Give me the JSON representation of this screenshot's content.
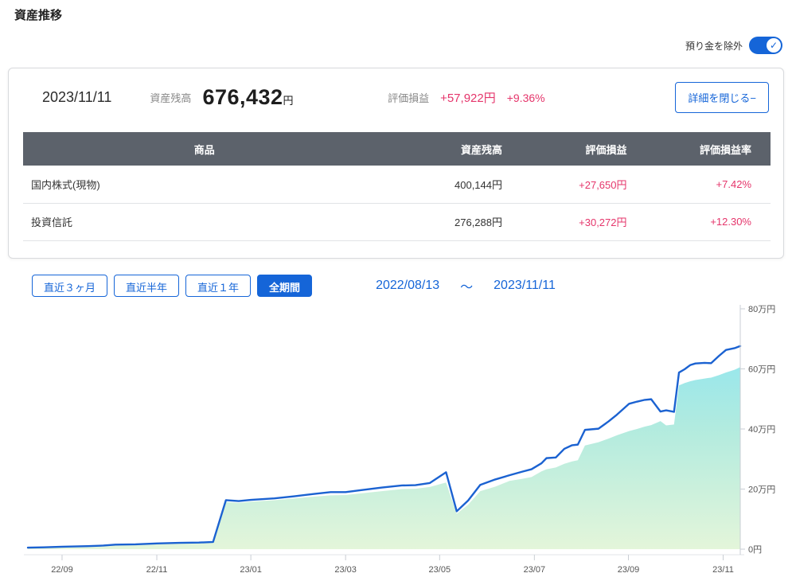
{
  "page": {
    "title": "資産推移"
  },
  "toggle": {
    "label": "預り金を除外",
    "on": true,
    "check_glyph": "✓",
    "accent": "#1565d8"
  },
  "summary": {
    "date": "2023/11/11",
    "balance_label": "資産残高",
    "balance_value": "676,432",
    "balance_unit": "円",
    "pl_label": "評価損益",
    "pl_value": "+57,922円",
    "pl_pct": "+9.36%",
    "detail_button_label": "詳細を閉じる−",
    "gain_color": "#e5356b"
  },
  "table": {
    "headers": [
      "商品",
      "資産残高",
      "評価損益",
      "評価損益率"
    ],
    "rows": [
      {
        "product": "国内株式(現物)",
        "balance": "400,144円",
        "pl": "+27,650円",
        "pl_rate": "+7.42%"
      },
      {
        "product": "投資信託",
        "balance": "276,288円",
        "pl": "+30,272円",
        "pl_rate": "+12.30%"
      }
    ],
    "header_bg": "#5c626b"
  },
  "period": {
    "buttons": [
      {
        "label": "直近３ヶ月",
        "selected": false
      },
      {
        "label": "直近半年",
        "selected": false
      },
      {
        "label": "直近１年",
        "selected": false
      },
      {
        "label": "全期間",
        "selected": true
      }
    ],
    "range_start": "2022/08/13",
    "range_separator": "～",
    "range_end": "2023/11/11"
  },
  "chart_data": {
    "type": "area",
    "title": "",
    "x_range": [
      "2022/08/13",
      "2023/11/11"
    ],
    "ylim": [
      0,
      80
    ],
    "y_unit": "万円",
    "grid": false,
    "legend": "none",
    "y_axis_side": "right",
    "y_ticks": [
      {
        "value": 0,
        "label": "0円"
      },
      {
        "value": 20,
        "label": "20万円"
      },
      {
        "value": 40,
        "label": "40万円"
      },
      {
        "value": 60,
        "label": "60万円"
      },
      {
        "value": 80,
        "label": "80万円"
      }
    ],
    "x_ticks": [
      {
        "pct": 4.8,
        "label": "22/09"
      },
      {
        "pct": 18.1,
        "label": "22/11"
      },
      {
        "pct": 31.3,
        "label": "23/01"
      },
      {
        "pct": 44.6,
        "label": "23/03"
      },
      {
        "pct": 57.8,
        "label": "23/05"
      },
      {
        "pct": 71.1,
        "label": "23/07"
      },
      {
        "pct": 84.3,
        "label": "23/09"
      },
      {
        "pct": 97.6,
        "label": "23/11"
      }
    ],
    "series": [
      {
        "type": "area",
        "fill_gradient": [
          "#7ce2f6",
          "#aeeadd",
          "#e2f5d8"
        ],
        "points": [
          [
            0,
            0.4
          ],
          [
            2.2,
            0.5
          ],
          [
            4.8,
            0.7
          ],
          [
            8.4,
            0.9
          ],
          [
            10.6,
            1.0
          ],
          [
            12.3,
            1.3
          ],
          [
            15.1,
            1.4
          ],
          [
            18.1,
            1.7
          ],
          [
            21.2,
            1.9
          ],
          [
            24.0,
            2.0
          ],
          [
            26.0,
            2.2
          ],
          [
            27.8,
            15.7
          ],
          [
            29.6,
            15.4
          ],
          [
            31.3,
            15.8
          ],
          [
            34.6,
            16.3
          ],
          [
            37.4,
            16.9
          ],
          [
            40.2,
            17.5
          ],
          [
            42.5,
            17.9
          ],
          [
            44.6,
            18.0
          ],
          [
            46.9,
            18.6
          ],
          [
            49.7,
            19.3
          ],
          [
            52.5,
            20.0
          ],
          [
            54.4,
            20.1
          ],
          [
            56.4,
            20.7
          ],
          [
            58.7,
            22.2
          ],
          [
            60.2,
            11.8
          ],
          [
            61.8,
            14.8
          ],
          [
            63.5,
            19.3
          ],
          [
            65.6,
            20.8
          ],
          [
            67.6,
            22.7
          ],
          [
            69.4,
            23.4
          ],
          [
            70.7,
            24.0
          ],
          [
            72.1,
            25.9
          ],
          [
            72.8,
            26.6
          ],
          [
            74.1,
            27.2
          ],
          [
            75.3,
            28.4
          ],
          [
            76.4,
            29.2
          ],
          [
            77.2,
            29.6
          ],
          [
            78.2,
            34.5
          ],
          [
            80.1,
            35.6
          ],
          [
            81.5,
            36.8
          ],
          [
            82.7,
            37.9
          ],
          [
            84.4,
            39.3
          ],
          [
            85.5,
            40.0
          ],
          [
            86.6,
            40.8
          ],
          [
            87.5,
            41.3
          ],
          [
            88.8,
            42.6
          ],
          [
            89.6,
            41.2
          ],
          [
            90.7,
            41.5
          ],
          [
            91.4,
            54.5
          ],
          [
            92.2,
            55.3
          ],
          [
            93.0,
            55.9
          ],
          [
            93.7,
            56.3
          ],
          [
            95.0,
            56.8
          ],
          [
            95.9,
            57.1
          ],
          [
            97.0,
            57.9
          ],
          [
            98.0,
            58.8
          ],
          [
            99.2,
            59.7
          ],
          [
            100,
            60.6
          ]
        ]
      },
      {
        "type": "line",
        "color": "#1b62d1",
        "points": [
          [
            0,
            0.5
          ],
          [
            2.2,
            0.6
          ],
          [
            4.8,
            0.8
          ],
          [
            8.4,
            1.0
          ],
          [
            10.6,
            1.2
          ],
          [
            12.3,
            1.5
          ],
          [
            15.1,
            1.6
          ],
          [
            18.1,
            1.9
          ],
          [
            21.2,
            2.1
          ],
          [
            24.0,
            2.2
          ],
          [
            26.0,
            2.4
          ],
          [
            27.8,
            16.3
          ],
          [
            29.6,
            16.0
          ],
          [
            31.3,
            16.4
          ],
          [
            34.6,
            16.9
          ],
          [
            37.4,
            17.6
          ],
          [
            40.2,
            18.4
          ],
          [
            42.5,
            19.0
          ],
          [
            44.6,
            19.0
          ],
          [
            46.9,
            19.7
          ],
          [
            49.7,
            20.5
          ],
          [
            52.5,
            21.2
          ],
          [
            54.4,
            21.3
          ],
          [
            56.4,
            22.0
          ],
          [
            58.7,
            25.6
          ],
          [
            60.2,
            12.6
          ],
          [
            61.8,
            16.2
          ],
          [
            63.5,
            21.4
          ],
          [
            65.6,
            23.2
          ],
          [
            67.6,
            24.6
          ],
          [
            69.4,
            25.8
          ],
          [
            70.7,
            26.6
          ],
          [
            72.1,
            28.6
          ],
          [
            72.8,
            30.3
          ],
          [
            74.1,
            30.5
          ],
          [
            75.3,
            33.4
          ],
          [
            76.4,
            34.6
          ],
          [
            77.2,
            34.8
          ],
          [
            78.2,
            39.7
          ],
          [
            80.1,
            40.1
          ],
          [
            81.5,
            42.5
          ],
          [
            82.7,
            44.8
          ],
          [
            84.4,
            48.4
          ],
          [
            85.5,
            49.1
          ],
          [
            86.6,
            49.7
          ],
          [
            87.5,
            49.9
          ],
          [
            88.8,
            45.8
          ],
          [
            89.6,
            46.2
          ],
          [
            90.7,
            45.7
          ],
          [
            91.4,
            58.8
          ],
          [
            92.2,
            59.9
          ],
          [
            93.0,
            61.3
          ],
          [
            93.7,
            61.8
          ],
          [
            95.0,
            62.0
          ],
          [
            95.9,
            61.9
          ],
          [
            97.0,
            64.3
          ],
          [
            98.0,
            66.3
          ],
          [
            99.2,
            66.9
          ],
          [
            100,
            67.6
          ]
        ]
      }
    ]
  }
}
